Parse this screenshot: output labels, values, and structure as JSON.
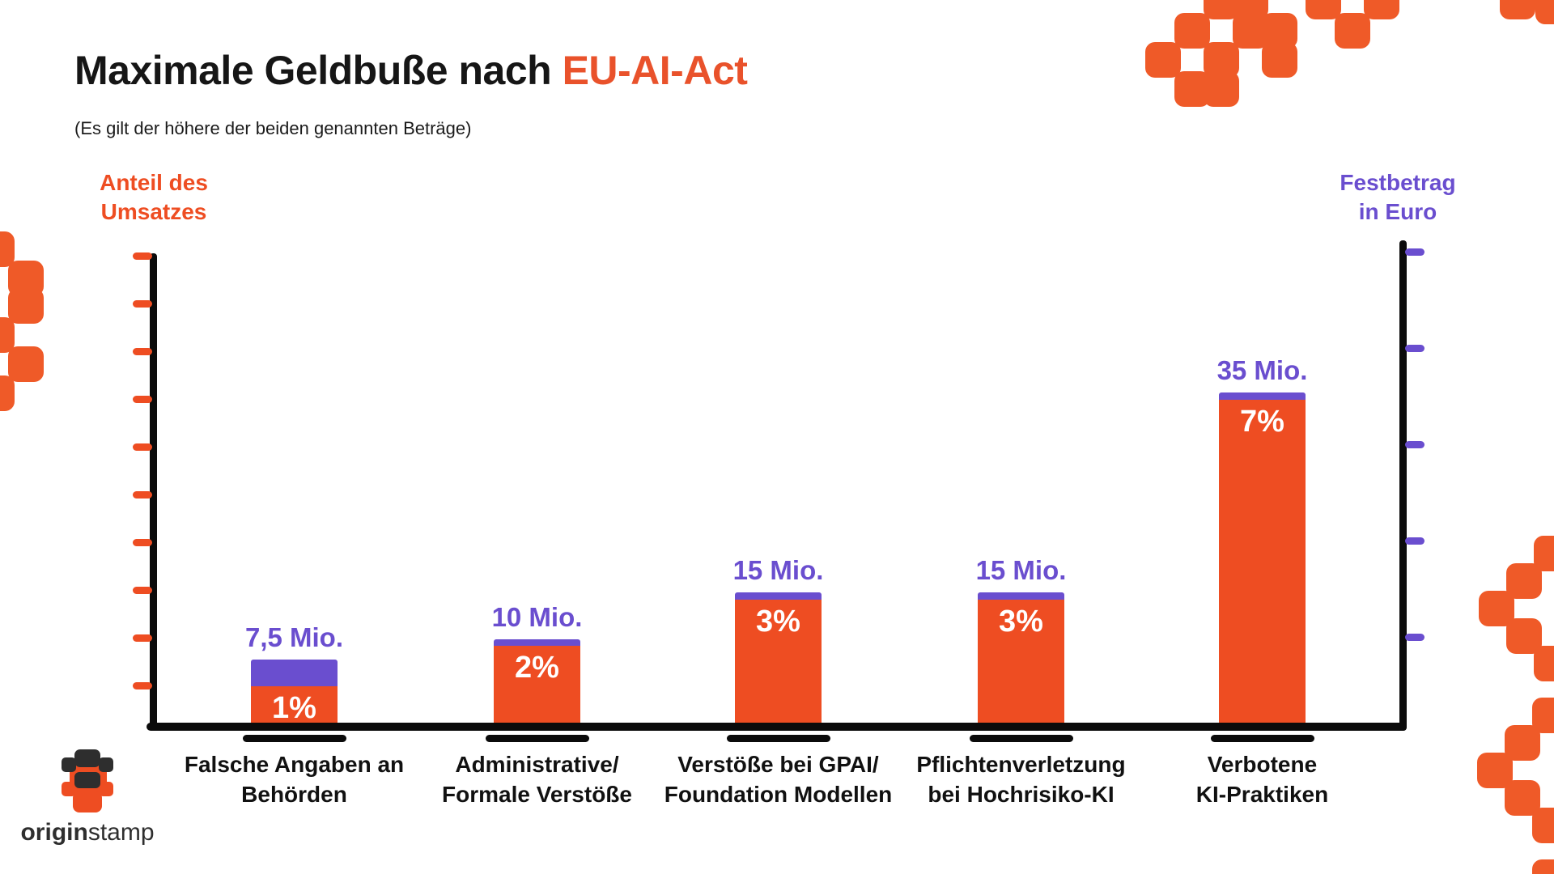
{
  "title": {
    "text_black": "Maximale Geldbuße nach",
    "text_accent": "EU-AI-Act"
  },
  "subtitle": "(Es gilt der höhere der beiden genannten Beträge)",
  "colors": {
    "orange": "#EE4D22",
    "purple": "#6A4ECF",
    "accent_title": "#E9522B",
    "ink": "#111111",
    "background": "#FFFFFF",
    "logo_ink": "#2E2E2E"
  },
  "axes": {
    "left": {
      "title_lines": [
        "Anteil des",
        "Umsatzes"
      ],
      "tick_count": 10,
      "tick_color": "#EE4D22",
      "numeric_labels": "none"
    },
    "right": {
      "title_lines": [
        "Festbetrag",
        "in Euro"
      ],
      "tick_count": 5,
      "tick_color": "#6A4ECF",
      "numeric_labels": "none"
    }
  },
  "chart_data": {
    "type": "bar",
    "title": "Maximale Geldbuße nach EU-AI-Act",
    "subtitle": "(Es gilt der höhere der beiden genannten Beträge)",
    "categories": [
      [
        "Falsche Angaben an",
        "Behörden"
      ],
      [
        "Administrative/",
        "Formale Verstöße"
      ],
      [
        "Verstöße bei GPAI/",
        "Foundation Modellen"
      ],
      [
        "Pflichtenverletzung",
        "bei Hochrisiko-KI"
      ],
      [
        "Verbotene",
        "KI-Praktiken"
      ]
    ],
    "series": [
      {
        "name": "Festbetrag in Euro",
        "unit": "Mio. Euro",
        "values": [
          7.5,
          10,
          15,
          15,
          35
        ],
        "labels": [
          "7,5 Mio.",
          "10 Mio.",
          "15 Mio.",
          "15 Mio.",
          "35 Mio."
        ],
        "color": "#6A4ECF"
      },
      {
        "name": "Anteil des Umsatzes",
        "unit": "%",
        "values": [
          1,
          2,
          3,
          3,
          7
        ],
        "labels": [
          "1%",
          "2%",
          "3%",
          "3%",
          "7%"
        ],
        "color": "#EE4D22"
      }
    ],
    "legend": "none",
    "grid": false,
    "note": "Es gilt der höhere der beiden genannten Beträge"
  },
  "logo": {
    "bold": "origin",
    "regular": "stamp"
  }
}
